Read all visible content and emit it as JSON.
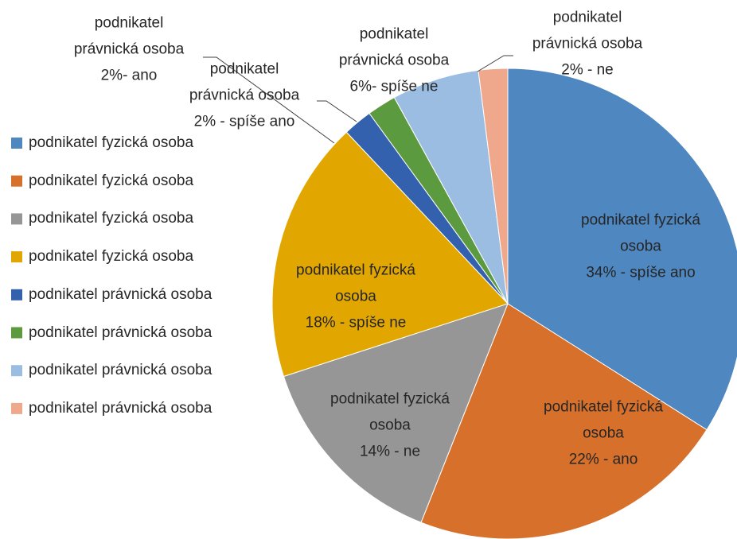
{
  "chart_data": {
    "type": "pie",
    "categories": [
      "podnikatel fyzická osoba",
      "podnikatel fyzická osoba",
      "podnikatel fyzická osoba",
      "podnikatel fyzická osoba",
      "podnikatel právnická osoba",
      "podnikatel právnická osoba",
      "podnikatel právnická osoba",
      "podnikatel právnická osoba"
    ],
    "values": [
      34,
      22,
      14,
      18,
      2,
      2,
      6,
      2
    ],
    "value_labels": [
      "podnikatel fyzická\nosoba\n34% - spíše ano",
      "podnikatel fyzická\nosoba\n22% - ano",
      "podnikatel fyzická\nosoba\n14% - ne",
      "podnikatel fyzická\nosoba\n18% - spíše ne",
      "podnikatel\nprávnická osoba\n2%- ano",
      "podnikatel\nprávnická osoba\n2% - spíše ano",
      "podnikatel\nprávnická osoba\n6%- spíše ne",
      "podnikatel\nprávnická osoba\n2% - ne"
    ],
    "colors": [
      "#4f87c0",
      "#d6702b",
      "#969696",
      "#e1a700",
      "#3461ad",
      "#5b9a3e",
      "#9cbde2",
      "#f0a88c"
    ],
    "legend": "left"
  }
}
